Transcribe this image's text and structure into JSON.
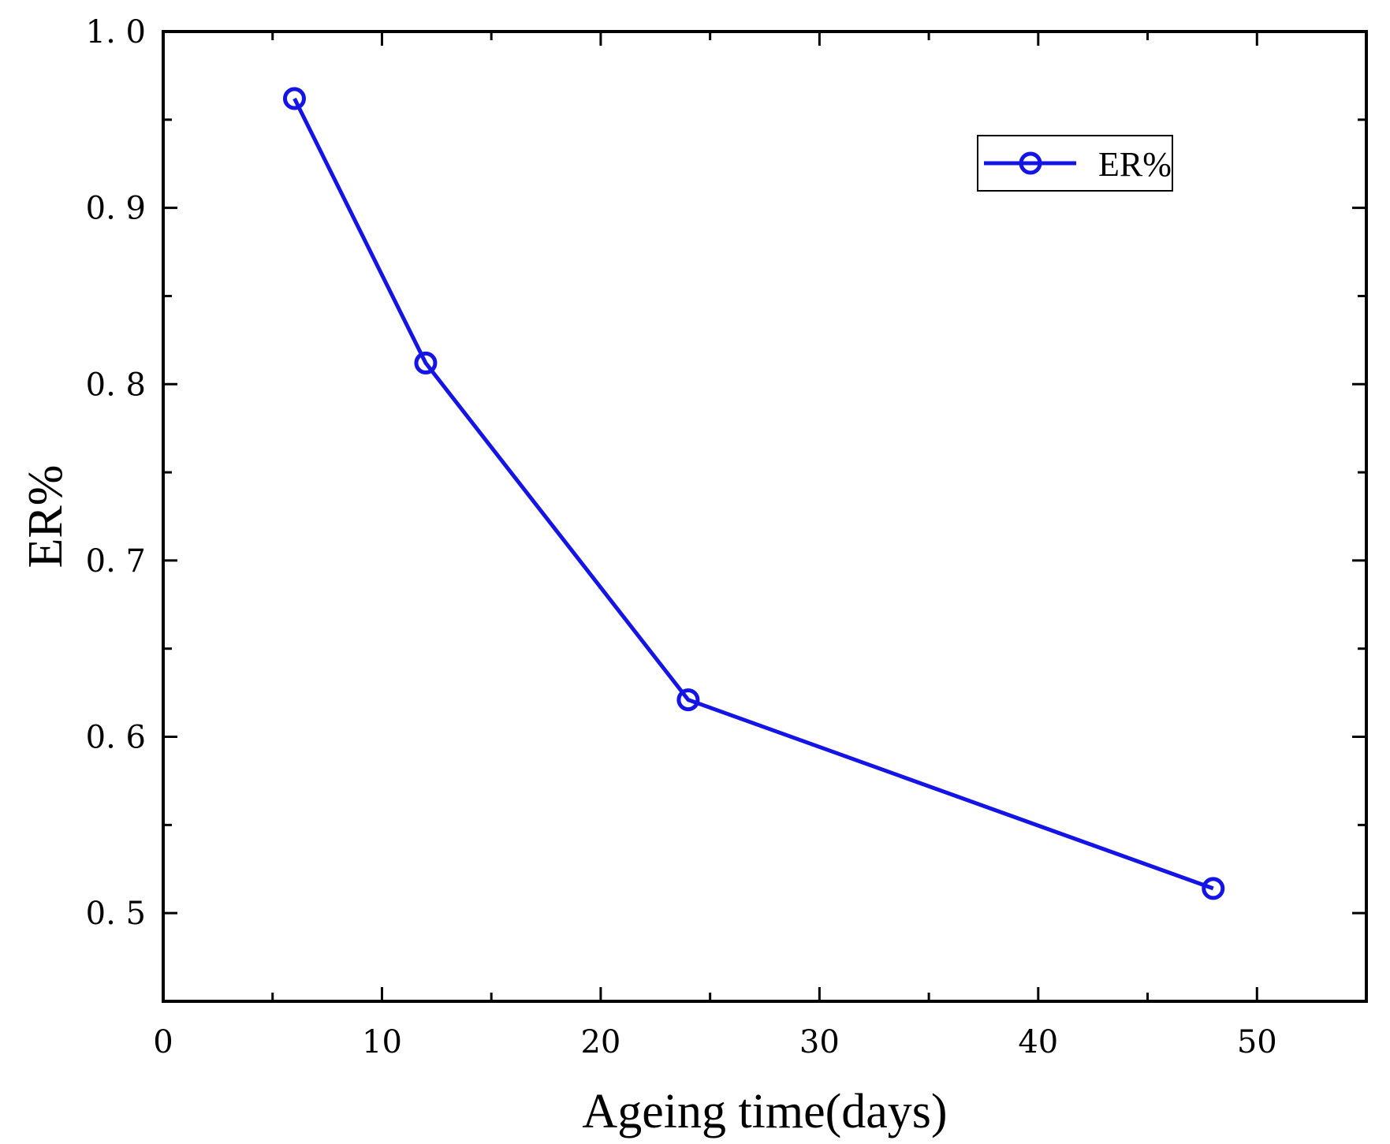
{
  "chart_data": {
    "type": "line",
    "title": "",
    "xlabel": "Ageing time(days)",
    "ylabel": "ER%",
    "xlim": [
      0,
      55
    ],
    "ylim": [
      0.45,
      1.0
    ],
    "xticks": [
      0,
      10,
      20,
      30,
      40,
      50
    ],
    "xtick_labels": [
      "0",
      "10",
      "20",
      "30",
      "40",
      "50"
    ],
    "xminor_ticks": [
      5,
      15,
      25,
      35,
      45
    ],
    "yticks": [
      0.5,
      0.6,
      0.7,
      0.8,
      0.9,
      1.0
    ],
    "ytick_labels": [
      "0. 5",
      "0. 6",
      "0. 7",
      "0. 8",
      "0. 9",
      "1. 0"
    ],
    "yminor_ticks": [
      0.55,
      0.65,
      0.75,
      0.85,
      0.95
    ],
    "grid": false,
    "legend_position": "top-right",
    "series": [
      {
        "name": "ER%",
        "color": "#1414e6",
        "marker": "open-circle",
        "x": [
          6,
          12,
          24,
          48
        ],
        "y": [
          0.962,
          0.812,
          0.621,
          0.514
        ]
      }
    ]
  }
}
